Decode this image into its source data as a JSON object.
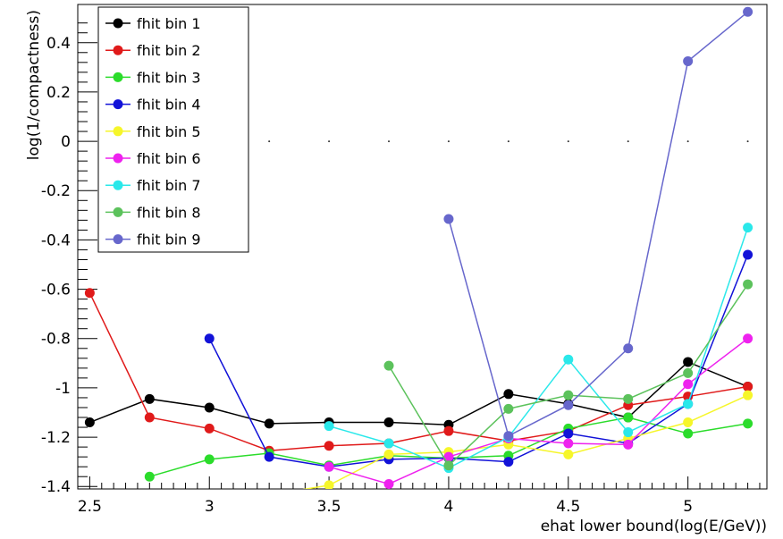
{
  "chart_data": {
    "type": "line",
    "title": "",
    "xlabel": "ehat lower bound(log(E/GeV))",
    "ylabel": "log(1/compactness)",
    "xlim": [
      2.45,
      5.33
    ],
    "ylim": [
      -1.41,
      0.555
    ],
    "x_ticks": [
      2.5,
      3,
      3.5,
      4,
      4.5,
      5
    ],
    "x_tick_labels": [
      "2.5",
      "3",
      "3.5",
      "4",
      "4.5",
      "5"
    ],
    "y_ticks": [
      -1.4,
      -1.2,
      -1,
      -0.8,
      -0.6,
      -0.4,
      -0.2,
      0,
      0.2,
      0.4
    ],
    "y_tick_labels": [
      "-1.4",
      "-1.2",
      "-1",
      "-0.8",
      "-0.6",
      "-0.4",
      "-0.2",
      "0",
      "0.2",
      "0.4"
    ],
    "legend_position": "top-left",
    "grid": false,
    "series": [
      {
        "name": "fhit bin 1",
        "color": "#000000",
        "points": [
          [
            2.5,
            -1.14
          ],
          [
            2.75,
            -1.045
          ],
          [
            3.0,
            -1.08
          ],
          [
            3.25,
            -1.145
          ],
          [
            3.5,
            -1.14
          ],
          [
            3.75,
            -1.14
          ],
          [
            4.0,
            -1.15
          ],
          [
            4.25,
            -1.025
          ],
          [
            4.5,
            -1.065
          ],
          [
            4.75,
            -1.12
          ],
          [
            5.0,
            -0.895
          ],
          [
            5.25,
            -0.995
          ]
        ]
      },
      {
        "name": "fhit bin 2",
        "color": "#e01a1a",
        "points": [
          [
            2.5,
            -0.615
          ],
          [
            2.75,
            -1.12
          ],
          [
            3.0,
            -1.165
          ],
          [
            3.25,
            -1.255
          ],
          [
            3.5,
            -1.235
          ],
          [
            3.75,
            -1.225
          ],
          [
            4.0,
            -1.175
          ],
          [
            4.25,
            -1.215
          ],
          [
            4.5,
            -1.175
          ],
          [
            4.75,
            -1.07
          ],
          [
            5.0,
            -1.035
          ],
          [
            5.25,
            -0.995
          ]
        ]
      },
      {
        "name": "fhit bin 3",
        "color": "#2bdc2b",
        "points": [
          [
            2.75,
            -1.36
          ],
          [
            3.0,
            -1.29
          ],
          [
            3.25,
            -1.265
          ],
          [
            3.5,
            -1.315
          ],
          [
            3.75,
            -1.275
          ],
          [
            4.0,
            -1.285
          ],
          [
            4.25,
            -1.275
          ],
          [
            4.5,
            -1.165
          ],
          [
            4.75,
            -1.12
          ],
          [
            5.0,
            -1.185
          ],
          [
            5.25,
            -1.145
          ]
        ]
      },
      {
        "name": "fhit bin 4",
        "color": "#1212d8",
        "points": [
          [
            3.0,
            -0.8
          ],
          [
            3.25,
            -1.28
          ],
          [
            3.5,
            -1.32
          ],
          [
            3.75,
            -1.29
          ],
          [
            4.0,
            -1.285
          ],
          [
            4.25,
            -1.3
          ],
          [
            4.5,
            -1.185
          ],
          [
            4.75,
            -1.225
          ],
          [
            5.0,
            -1.065
          ],
          [
            5.25,
            -0.46
          ]
        ]
      },
      {
        "name": "fhit bin 5",
        "color": "#f6f62a",
        "points": [
          [
            3.25,
            -1.435
          ],
          [
            3.5,
            -1.395
          ],
          [
            3.75,
            -1.27
          ],
          [
            4.0,
            -1.26
          ],
          [
            4.25,
            -1.23
          ],
          [
            4.5,
            -1.27
          ],
          [
            4.75,
            -1.205
          ],
          [
            5.0,
            -1.14
          ],
          [
            5.25,
            -1.03
          ]
        ]
      },
      {
        "name": "fhit bin 6",
        "color": "#ee22ee",
        "points": [
          [
            3.5,
            -1.32
          ],
          [
            3.75,
            -1.39
          ],
          [
            4.0,
            -1.28
          ],
          [
            4.25,
            -1.205
          ],
          [
            4.5,
            -1.225
          ],
          [
            4.75,
            -1.23
          ],
          [
            5.0,
            -0.985
          ],
          [
            5.25,
            -0.8
          ]
        ]
      },
      {
        "name": "fhit bin 7",
        "color": "#2ae8ea",
        "points": [
          [
            3.5,
            -1.155
          ],
          [
            3.75,
            -1.225
          ],
          [
            4.0,
            -1.325
          ],
          [
            4.25,
            -1.2
          ],
          [
            4.5,
            -0.885
          ],
          [
            4.75,
            -1.18
          ],
          [
            5.0,
            -1.065
          ],
          [
            5.25,
            -0.35
          ]
        ]
      },
      {
        "name": "fhit bin 8",
        "color": "#5cc25c",
        "points": [
          [
            3.75,
            -0.91
          ],
          [
            4.0,
            -1.315
          ],
          [
            4.25,
            -1.085
          ],
          [
            4.5,
            -1.03
          ],
          [
            4.75,
            -1.045
          ],
          [
            5.0,
            -0.94
          ],
          [
            5.25,
            -0.58
          ]
        ]
      },
      {
        "name": "fhit bin 9",
        "color": "#6767cc",
        "points": [
          [
            4.0,
            -0.315
          ],
          [
            4.25,
            -1.195
          ],
          [
            4.5,
            -1.07
          ],
          [
            4.75,
            -0.84
          ],
          [
            5.0,
            0.325
          ],
          [
            5.25,
            0.525
          ]
        ]
      }
    ]
  }
}
